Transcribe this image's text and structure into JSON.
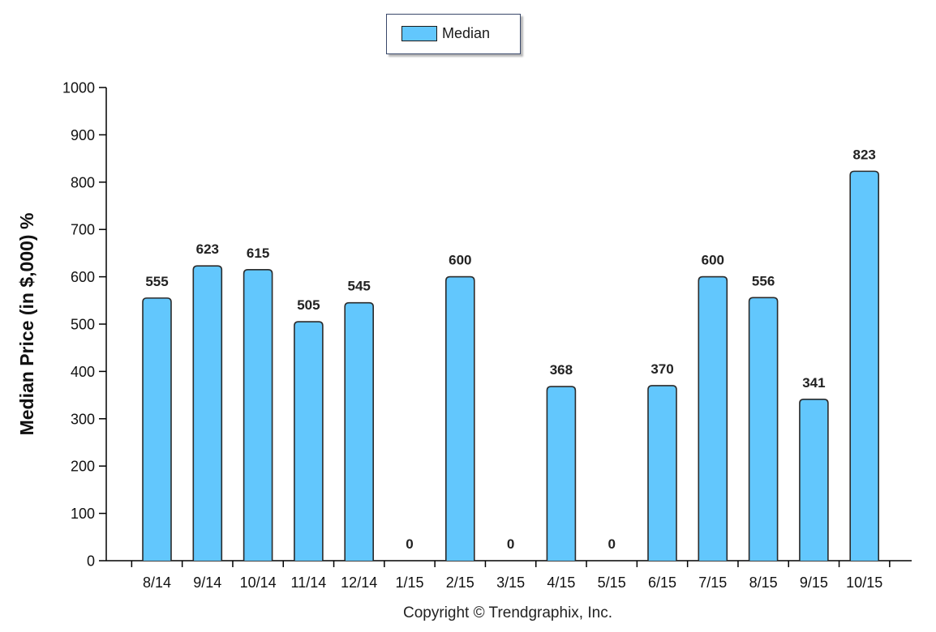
{
  "chart_data": {
    "type": "bar",
    "categories": [
      "8/14",
      "9/14",
      "10/14",
      "11/14",
      "12/14",
      "1/15",
      "2/15",
      "3/15",
      "4/15",
      "5/15",
      "6/15",
      "7/15",
      "8/15",
      "9/15",
      "10/15"
    ],
    "series": [
      {
        "name": "Median",
        "values": [
          555,
          623,
          615,
          505,
          545,
          0,
          600,
          0,
          368,
          0,
          370,
          600,
          556,
          341,
          823
        ]
      }
    ],
    "ylabel": "Median Price (in $,000) %",
    "xlabel": "",
    "ylim": [
      0,
      1000
    ],
    "yticks": [
      0,
      100,
      200,
      300,
      400,
      500,
      600,
      700,
      800,
      900,
      1000
    ],
    "legend_position": "top-center",
    "grid": false,
    "bar_color": "#62c7fd"
  },
  "footer": {
    "copyright": "Copyright © Trendgraphix, Inc."
  }
}
